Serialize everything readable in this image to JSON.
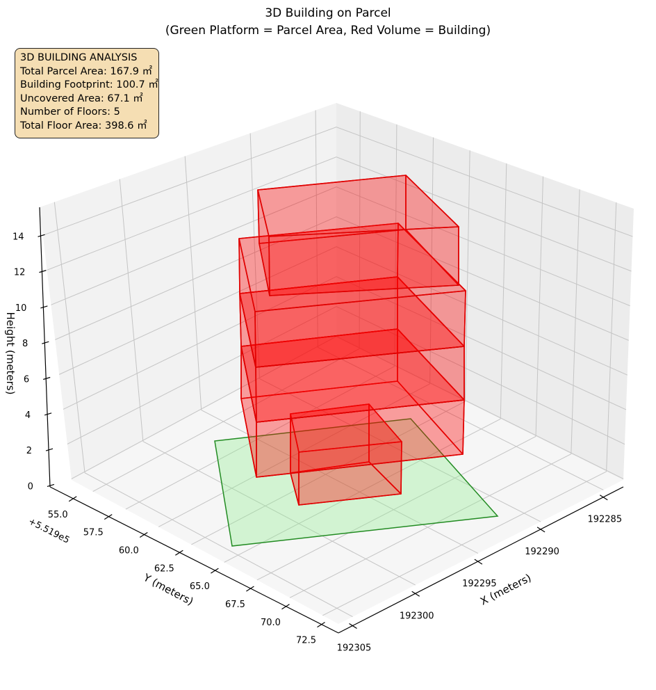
{
  "chart_data": {
    "type": "3d-polygons",
    "title": "3D Building on Parcel",
    "subtitle": "(Green Platform = Parcel Area, Red Volume = Building)",
    "xlabel": "X (meters)",
    "ylabel": "Y (meters)",
    "zlabel": "Height (meters)",
    "y_offset_label": "+5.519e5",
    "x_ticks": [
      "192285",
      "192290",
      "192295",
      "192300",
      "192305"
    ],
    "y_ticks": [
      "55.0",
      "57.5",
      "60.0",
      "62.5",
      "65.0",
      "67.5",
      "70.0",
      "72.5"
    ],
    "z_ticks": [
      "0",
      "2",
      "4",
      "6",
      "8",
      "10",
      "12",
      "14"
    ],
    "grid": true,
    "colors": {
      "parcel_fill": "#90ee90",
      "parcel_edge": "#228b22",
      "building_fill": "#ff0000",
      "building_edge": "#e00000",
      "info_box": "#f5deb3"
    },
    "floors": 5
  },
  "info_box": {
    "title": "3D BUILDING ANALYSIS",
    "lines": [
      "Total Parcel Area: 167.9 ㎡",
      "Building Footprint: 100.7 ㎡",
      "Uncovered Area: 67.1 ㎡",
      "Number of Floors: 5",
      "Total Floor Area: 398.6 ㎡"
    ]
  }
}
